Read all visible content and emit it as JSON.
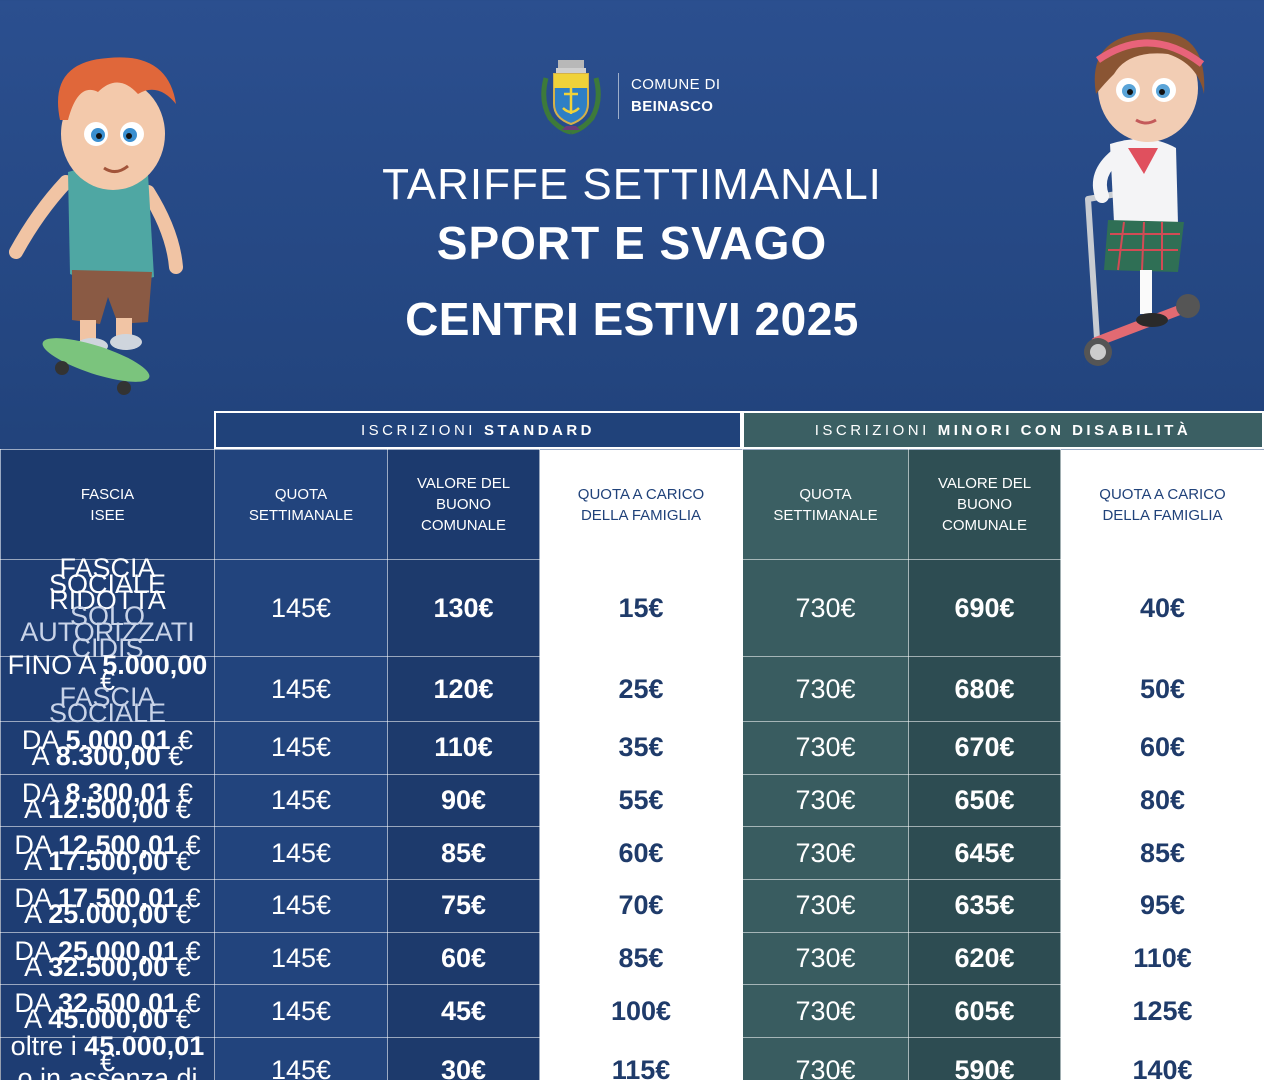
{
  "header": {
    "brand_line1": "COMUNE DI",
    "brand_line2": "BEINASCO",
    "title_line1": "TARIFFE SETTIMANALI",
    "title_line2": "SPORT E SVAGO",
    "title_line3": "CENTRI ESTIVI 2025"
  },
  "groups": {
    "standard_prefix": "ISCRIZIONI",
    "standard_bold": "STANDARD",
    "disability_prefix": "ISCRIZIONI",
    "disability_bold": "MINORI CON DISABILITÀ"
  },
  "columns": {
    "fascia_l1": "FASCIA",
    "fascia_l2": "ISEE",
    "quota_l1": "QUOTA",
    "quota_l2": "SETTIMANALE",
    "buono_l1": "VALORE DEL",
    "buono_l2": "BUONO",
    "buono_l3": "COMUNALE",
    "famiglia_l1": "QUOTA A CARICO",
    "famiglia_l2": "DELLA FAMIGLIA"
  },
  "rows": [
    {
      "f1": "FASCIA SOCIALE RIDOTTA",
      "f2": "SOLO AUTORIZZATI CIDIS",
      "q": "145€",
      "b": "130€",
      "fam": "15€",
      "qd": "730€",
      "bd": "690€",
      "famd": "40€"
    },
    {
      "f1p": "FINO A ",
      "f1b": "5.000,00",
      "f1s": " €",
      "f2": "FASCIA SOCIALE",
      "q": "145€",
      "b": "120€",
      "fam": "25€",
      "qd": "730€",
      "bd": "680€",
      "famd": "50€"
    },
    {
      "f1p": "DA ",
      "f1b": "5.000,01",
      "f1s": " €",
      "f2p": "A ",
      "f2b": "8.300,00",
      "f2s": " €",
      "q": "145€",
      "b": "110€",
      "fam": "35€",
      "qd": "730€",
      "bd": "670€",
      "famd": "60€"
    },
    {
      "f1p": "DA ",
      "f1b": "8.300,01",
      "f1s": " €",
      "f2p": "A ",
      "f2b": "12.500,00",
      "f2s": " €",
      "q": "145€",
      "b": "90€",
      "fam": "55€",
      "qd": "730€",
      "bd": "650€",
      "famd": "80€"
    },
    {
      "f1p": "DA ",
      "f1b": "12.500,01",
      "f1s": " €",
      "f2p": "A ",
      "f2b": "17.500,00",
      "f2s": " €",
      "q": "145€",
      "b": "85€",
      "fam": "60€",
      "qd": "730€",
      "bd": "645€",
      "famd": "85€"
    },
    {
      "f1p": "DA ",
      "f1b": "17.500,01",
      "f1s": " €",
      "f2p": "A ",
      "f2b": "25.000,00",
      "f2s": " €",
      "q": "145€",
      "b": "75€",
      "fam": "70€",
      "qd": "730€",
      "bd": "635€",
      "famd": "95€"
    },
    {
      "f1p": "DA ",
      "f1b": "25.000,01",
      "f1s": " €",
      "f2p": "A ",
      "f2b": "32.500,00",
      "f2s": " €",
      "q": "145€",
      "b": "60€",
      "fam": "85€",
      "qd": "730€",
      "bd": "620€",
      "famd": "110€"
    },
    {
      "f1p": "DA ",
      "f1b": "32.500,01",
      "f1s": " €",
      "f2p": "A ",
      "f2b": "45.000,00",
      "f2s": " €",
      "q": "145€",
      "b": "45€",
      "fam": "100€",
      "qd": "730€",
      "bd": "605€",
      "famd": "125€"
    },
    {
      "f1p": "oltre i ",
      "f1b": "45.000,01",
      "f1s": " €",
      "f2": "o in assenza di ISEE",
      "q": "145€",
      "b": "30€",
      "fam": "115€",
      "qd": "730€",
      "bd": "590€",
      "famd": "140€"
    }
  ],
  "colors": {
    "bg_blue": "#2b4f8f",
    "standard_blue": "#20427a",
    "disability_teal": "#3b5f63",
    "text_navy": "#1f3b6a"
  },
  "icons": {
    "crest": "municipal-crest-icon",
    "boy": "skateboard-boy-illustration",
    "girl": "scooter-girl-illustration"
  }
}
